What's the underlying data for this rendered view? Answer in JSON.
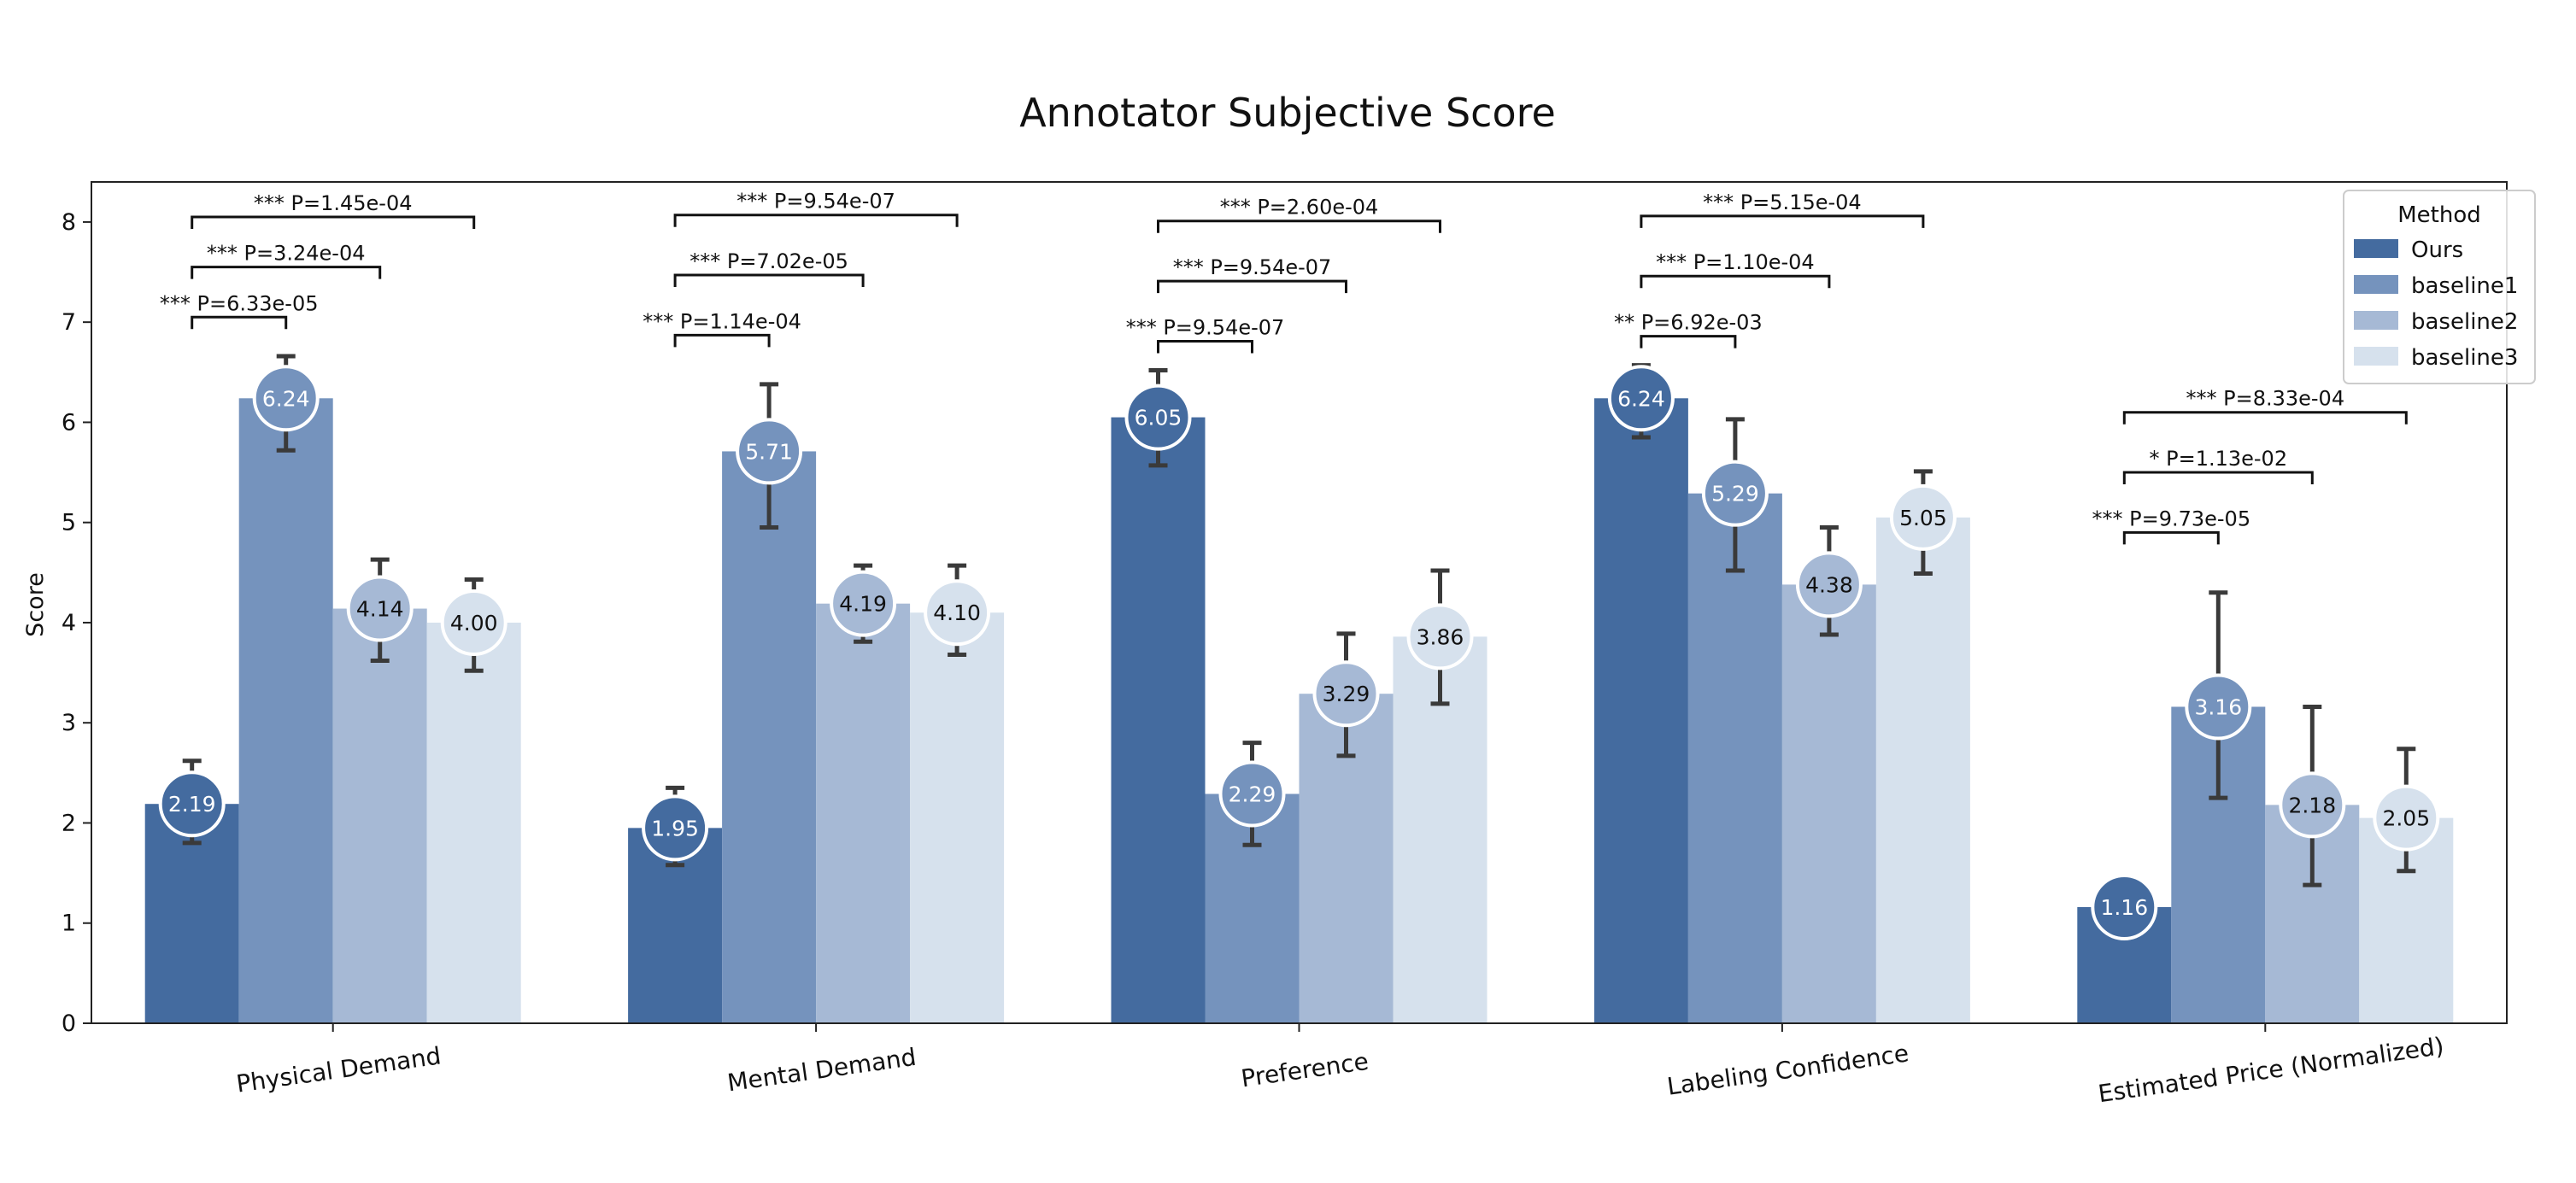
{
  "chart_data": {
    "type": "bar",
    "title": "Annotator Subjective Score",
    "xlabel": "",
    "ylabel": "Score",
    "ylim": [
      0,
      8.4
    ],
    "yticks": [
      "0",
      "1",
      "2",
      "3",
      "4",
      "5",
      "6",
      "7",
      "8"
    ],
    "grid": false,
    "legend": {
      "title": "Method",
      "position": "top-right"
    },
    "categories": [
      "Physical Demand",
      "Mental Demand",
      "Preference",
      "Labeling Confidence",
      "Estimated Price (Normalized)"
    ],
    "series": [
      {
        "name": "Ours",
        "color": "#446b9f",
        "values": [
          2.19,
          1.95,
          6.05,
          6.24,
          1.16
        ],
        "value_labels": [
          "2.19",
          "1.95",
          "6.05",
          "6.24",
          "1.16"
        ],
        "err_low": [
          1.8,
          1.58,
          5.57,
          5.85,
          null
        ],
        "err_high": [
          2.62,
          2.35,
          6.52,
          6.57,
          null
        ]
      },
      {
        "name": "baseline1",
        "color": "#7593bd",
        "values": [
          6.24,
          5.71,
          2.29,
          5.29,
          3.16
        ],
        "value_labels": [
          "6.24",
          "5.71",
          "2.29",
          "5.29",
          "3.16"
        ],
        "err_low": [
          5.72,
          4.95,
          1.78,
          4.52,
          2.25
        ],
        "err_high": [
          6.66,
          6.38,
          2.8,
          6.03,
          4.3
        ]
      },
      {
        "name": "baseline2",
        "color": "#a6b9d5",
        "values": [
          4.14,
          4.19,
          3.29,
          4.38,
          2.18
        ],
        "value_labels": [
          "4.14",
          "4.19",
          "3.29",
          "4.38",
          "2.18"
        ],
        "err_low": [
          3.62,
          3.81,
          2.67,
          3.88,
          1.38
        ],
        "err_high": [
          4.63,
          4.57,
          3.89,
          4.95,
          3.16
        ]
      },
      {
        "name": "baseline3",
        "color": "#d6e1ed",
        "values": [
          4.0,
          4.1,
          3.86,
          5.05,
          2.05
        ],
        "value_labels": [
          "4.00",
          "4.10",
          "3.86",
          "5.05",
          "2.05"
        ],
        "err_low": [
          3.52,
          3.68,
          3.19,
          4.49,
          1.52
        ],
        "err_high": [
          4.43,
          4.57,
          4.52,
          5.51,
          2.74
        ]
      }
    ],
    "significance": [
      {
        "category": 0,
        "compare": 1,
        "y": 7.05,
        "label": "*** P=6.33e-05"
      },
      {
        "category": 0,
        "compare": 2,
        "y": 7.55,
        "label": "*** P=3.24e-04"
      },
      {
        "category": 0,
        "compare": 3,
        "y": 8.05,
        "label": "*** P=1.45e-04"
      },
      {
        "category": 1,
        "compare": 1,
        "y": 6.87,
        "label": "*** P=1.14e-04"
      },
      {
        "category": 1,
        "compare": 2,
        "y": 7.47,
        "label": "*** P=7.02e-05"
      },
      {
        "category": 1,
        "compare": 3,
        "y": 8.07,
        "label": "*** P=9.54e-07"
      },
      {
        "category": 2,
        "compare": 1,
        "y": 6.81,
        "label": "*** P=9.54e-07"
      },
      {
        "category": 2,
        "compare": 2,
        "y": 7.41,
        "label": "*** P=9.54e-07"
      },
      {
        "category": 2,
        "compare": 3,
        "y": 8.01,
        "label": "*** P=2.60e-04"
      },
      {
        "category": 3,
        "compare": 1,
        "y": 6.86,
        "label": "** P=6.92e-03"
      },
      {
        "category": 3,
        "compare": 2,
        "y": 7.46,
        "label": "*** P=1.10e-04"
      },
      {
        "category": 3,
        "compare": 3,
        "y": 8.06,
        "label": "*** P=5.15e-04"
      },
      {
        "category": 4,
        "compare": 1,
        "y": 4.9,
        "label": "*** P=9.73e-05"
      },
      {
        "category": 4,
        "compare": 2,
        "y": 5.5,
        "label": "* P=1.13e-02"
      },
      {
        "category": 4,
        "compare": 3,
        "y": 6.1,
        "label": "*** P=8.33e-04"
      }
    ]
  }
}
